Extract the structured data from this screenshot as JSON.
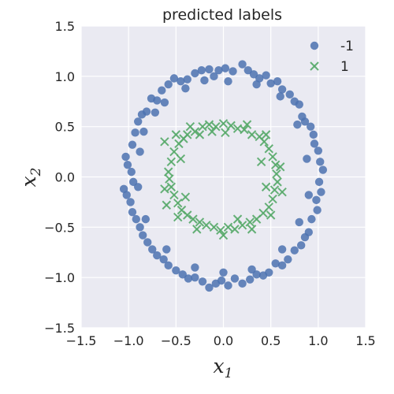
{
  "chart_data": {
    "type": "scatter",
    "title": "predicted labels",
    "xlabel": {
      "base": "x",
      "sub": "1"
    },
    "ylabel": {
      "base": "x",
      "sub": "2"
    },
    "xlim": [
      -1.5,
      1.5
    ],
    "ylim": [
      -1.5,
      1.5
    ],
    "xticks": [
      -1.5,
      -1.0,
      -0.5,
      0.0,
      0.5,
      1.0,
      1.5
    ],
    "yticks": [
      -1.5,
      -1.0,
      -0.5,
      0.0,
      0.5,
      1.0,
      1.5
    ],
    "xtick_labels": [
      "−1.5",
      "−1.0",
      "−0.5",
      "0.0",
      "0.5",
      "1.0",
      "1.5"
    ],
    "ytick_labels": [
      "−1.5",
      "−1.0",
      "−0.5",
      "0.0",
      "0.5",
      "1.0",
      "1.5"
    ],
    "grid": true,
    "legend_position": "top-right",
    "series": [
      {
        "name": "-1",
        "marker": "circle",
        "color": "#4c72b0",
        "points": [
          [
            -1.05,
            -0.12
          ],
          [
            -1.01,
            0.12
          ],
          [
            -1.03,
            0.2
          ],
          [
            -0.93,
            0.44
          ],
          [
            -0.96,
            0.32
          ],
          [
            -0.9,
            0.55
          ],
          [
            -0.86,
            0.62
          ],
          [
            -0.81,
            0.65
          ],
          [
            -0.76,
            0.78
          ],
          [
            -0.7,
            0.76
          ],
          [
            -0.65,
            0.86
          ],
          [
            -0.58,
            0.92
          ],
          [
            -0.52,
            0.98
          ],
          [
            -0.45,
            0.95
          ],
          [
            -0.38,
            0.97
          ],
          [
            -0.3,
            1.03
          ],
          [
            -0.23,
            1.06
          ],
          [
            -0.15,
            1.07
          ],
          [
            -0.1,
            1.0
          ],
          [
            -0.05,
            1.06
          ],
          [
            0.02,
            1.08
          ],
          [
            0.1,
            1.05
          ],
          [
            0.2,
            1.12
          ],
          [
            0.26,
            1.06
          ],
          [
            0.32,
            1.02
          ],
          [
            0.38,
            0.98
          ],
          [
            0.45,
            1.01
          ],
          [
            0.5,
            0.93
          ],
          [
            0.57,
            0.95
          ],
          [
            0.62,
            0.87
          ],
          [
            0.7,
            0.82
          ],
          [
            0.75,
            0.75
          ],
          [
            0.8,
            0.72
          ],
          [
            0.83,
            0.6
          ],
          [
            0.86,
            0.55
          ],
          [
            0.92,
            0.5
          ],
          [
            0.95,
            0.42
          ],
          [
            0.96,
            0.33
          ],
          [
            1.0,
            0.26
          ],
          [
            1.02,
            0.15
          ],
          [
            1.05,
            0.07
          ],
          [
            1.01,
            -0.05
          ],
          [
            1.03,
            -0.15
          ],
          [
            0.98,
            -0.23
          ],
          [
            0.99,
            -0.33
          ],
          [
            0.93,
            -0.42
          ],
          [
            0.9,
            -0.55
          ],
          [
            0.86,
            -0.6
          ],
          [
            0.82,
            -0.68
          ],
          [
            0.75,
            -0.73
          ],
          [
            0.68,
            -0.82
          ],
          [
            0.62,
            -0.88
          ],
          [
            0.55,
            -0.86
          ],
          [
            0.48,
            -0.95
          ],
          [
            0.42,
            -0.98
          ],
          [
            0.35,
            -0.97
          ],
          [
            0.28,
            -1.02
          ],
          [
            0.2,
            -1.06
          ],
          [
            0.12,
            -1.01
          ],
          [
            0.05,
            -1.08
          ],
          [
            -0.02,
            -1.03
          ],
          [
            -0.08,
            -1.06
          ],
          [
            -0.15,
            -1.1
          ],
          [
            -0.22,
            -1.04
          ],
          [
            -0.3,
            -1.0
          ],
          [
            -0.37,
            -1.01
          ],
          [
            -0.43,
            -0.97
          ],
          [
            -0.5,
            -0.93
          ],
          [
            -0.58,
            -0.88
          ],
          [
            -0.63,
            -0.82
          ],
          [
            -0.7,
            -0.78
          ],
          [
            -0.75,
            -0.72
          ],
          [
            -0.8,
            -0.65
          ],
          [
            -0.85,
            -0.58
          ],
          [
            -0.88,
            -0.5
          ],
          [
            -0.92,
            -0.42
          ],
          [
            -0.96,
            -0.35
          ],
          [
            -0.98,
            -0.25
          ],
          [
            -1.02,
            -0.18
          ],
          [
            -0.95,
            -0.05
          ],
          [
            -0.97,
            0.05
          ],
          [
            -0.88,
            0.25
          ],
          [
            -0.84,
            0.45
          ],
          [
            -0.72,
            0.64
          ],
          [
            -0.62,
            0.74
          ],
          [
            -0.4,
            0.88
          ],
          [
            -0.2,
            0.96
          ],
          [
            0.05,
            0.95
          ],
          [
            0.35,
            0.92
          ],
          [
            0.6,
            0.8
          ],
          [
            0.78,
            0.52
          ],
          [
            0.88,
            0.18
          ],
          [
            0.9,
            -0.18
          ],
          [
            0.8,
            -0.45
          ],
          [
            0.62,
            -0.72
          ],
          [
            0.3,
            -0.92
          ],
          [
            0.0,
            -0.95
          ],
          [
            -0.3,
            -0.9
          ],
          [
            -0.6,
            -0.72
          ],
          [
            -0.82,
            -0.42
          ],
          [
            -0.9,
            -0.1
          ]
        ]
      },
      {
        "name": "1",
        "marker": "x",
        "color": "#55a868",
        "points": [
          [
            -0.58,
            0.05
          ],
          [
            -0.55,
            0.15
          ],
          [
            -0.52,
            0.25
          ],
          [
            -0.47,
            0.33
          ],
          [
            -0.42,
            0.38
          ],
          [
            -0.38,
            0.42
          ],
          [
            -0.3,
            0.45
          ],
          [
            -0.22,
            0.5
          ],
          [
            -0.15,
            0.52
          ],
          [
            -0.08,
            0.5
          ],
          [
            0.0,
            0.53
          ],
          [
            0.08,
            0.51
          ],
          [
            0.15,
            0.48
          ],
          [
            0.22,
            0.47
          ],
          [
            0.3,
            0.42
          ],
          [
            0.38,
            0.4
          ],
          [
            0.43,
            0.35
          ],
          [
            0.48,
            0.28
          ],
          [
            0.52,
            0.2
          ],
          [
            0.55,
            0.12
          ],
          [
            0.56,
            0.03
          ],
          [
            0.57,
            -0.05
          ],
          [
            0.54,
            -0.13
          ],
          [
            0.52,
            -0.22
          ],
          [
            0.48,
            -0.3
          ],
          [
            0.42,
            -0.36
          ],
          [
            0.35,
            -0.42
          ],
          [
            0.28,
            -0.45
          ],
          [
            0.2,
            -0.48
          ],
          [
            0.12,
            -0.52
          ],
          [
            0.05,
            -0.5
          ],
          [
            -0.03,
            -0.53
          ],
          [
            -0.1,
            -0.5
          ],
          [
            -0.18,
            -0.48
          ],
          [
            -0.25,
            -0.45
          ],
          [
            -0.32,
            -0.42
          ],
          [
            -0.38,
            -0.38
          ],
          [
            -0.44,
            -0.33
          ],
          [
            -0.48,
            -0.26
          ],
          [
            -0.52,
            -0.18
          ],
          [
            -0.55,
            -0.1
          ],
          [
            -0.57,
            -0.02
          ],
          [
            -0.6,
            -0.28
          ],
          [
            -0.62,
            0.35
          ],
          [
            -0.5,
            0.42
          ],
          [
            -0.35,
            0.5
          ],
          [
            -0.25,
            0.42
          ],
          [
            0.02,
            0.44
          ],
          [
            0.25,
            0.52
          ],
          [
            0.45,
            0.42
          ],
          [
            0.6,
            0.1
          ],
          [
            0.62,
            -0.15
          ],
          [
            0.5,
            -0.38
          ],
          [
            0.3,
            -0.52
          ],
          [
            0.0,
            -0.58
          ],
          [
            -0.28,
            -0.52
          ],
          [
            -0.48,
            -0.4
          ],
          [
            -0.62,
            -0.12
          ],
          [
            -0.45,
            0.18
          ],
          [
            -0.4,
            -0.2
          ],
          [
            0.45,
            -0.1
          ],
          [
            0.4,
            0.15
          ],
          [
            -0.12,
            0.45
          ],
          [
            0.15,
            -0.42
          ]
        ]
      }
    ]
  }
}
